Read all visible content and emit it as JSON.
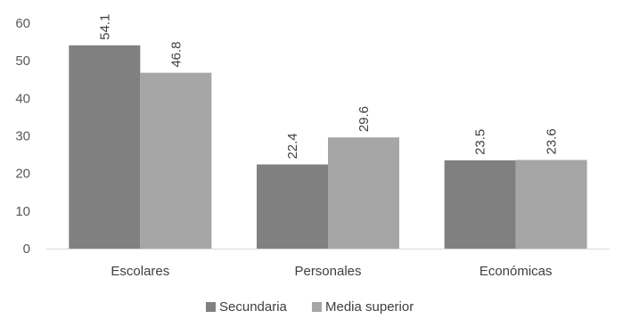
{
  "chart_data": {
    "type": "bar",
    "title": "",
    "xlabel": "",
    "ylabel": "",
    "categories": [
      "Escolares",
      "Personales",
      "Económicas"
    ],
    "series": [
      {
        "name": "Secundaria",
        "values": [
          54.1,
          22.4,
          23.5
        ],
        "color": "#808080"
      },
      {
        "name": "Media superior",
        "values": [
          46.8,
          29.6,
          23.6
        ],
        "color": "#a6a6a6"
      }
    ],
    "ylim": [
      0,
      60
    ],
    "yticks": [
      "0",
      "10",
      "20",
      "30",
      "40",
      "50",
      "60"
    ],
    "grid": false,
    "legend": "bottom",
    "data_labels": [
      "54.1",
      "46.8",
      "22.4",
      "29.6",
      "23.5",
      "23.6"
    ],
    "axis_color": "#d9d9d9"
  }
}
